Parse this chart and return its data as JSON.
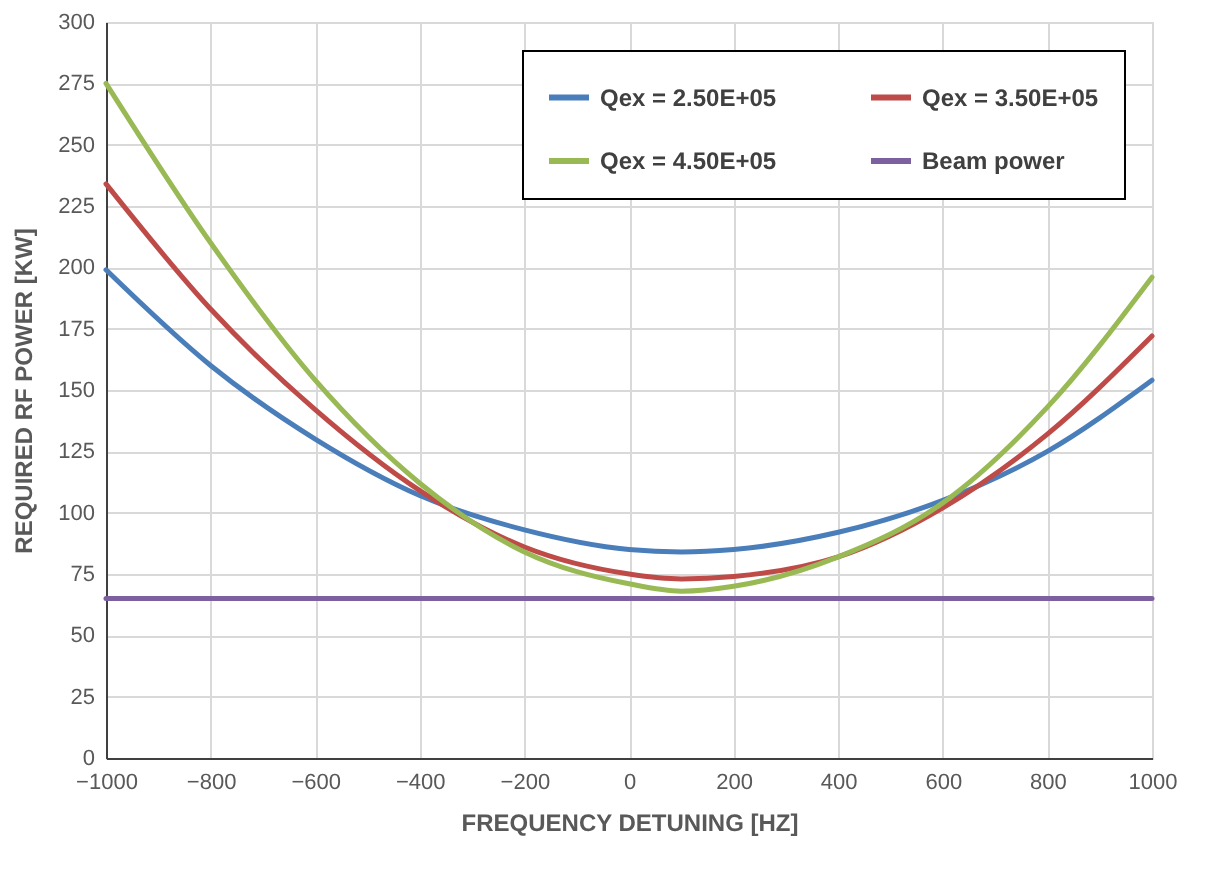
{
  "chart_data": {
    "type": "line",
    "xlabel": "FREQUENCY DETUNING [HZ]",
    "ylabel": "REQUIRED RF POWER [KW]",
    "x": [
      -1000,
      -800,
      -600,
      -400,
      -200,
      0,
      100,
      200,
      400,
      600,
      800,
      1000
    ],
    "series": [
      {
        "name": "Qex = 2.50E+05",
        "color": "#4a7ebb",
        "values": [
          199,
          160,
          130,
          107,
          93,
          85,
          84,
          85,
          92,
          105,
          125,
          154
        ]
      },
      {
        "name": "Qex = 3.50E+05",
        "color": "#be4b48",
        "values": [
          234,
          183,
          142,
          109,
          86,
          75,
          73,
          74,
          82,
          102,
          132,
          172
        ]
      },
      {
        "name": "Qex = 4.50E+05",
        "color": "#98b954",
        "values": [
          275,
          210,
          154,
          112,
          84,
          71,
          68,
          70,
          82,
          104,
          143,
          196
        ]
      },
      {
        "name": "Beam power",
        "color": "#7d60a0",
        "values": [
          65,
          65,
          65,
          65,
          65,
          65,
          65,
          65,
          65,
          65,
          65,
          65
        ]
      }
    ],
    "xlim": [
      -1000,
      1000
    ],
    "xticks": [
      -1000,
      -800,
      -600,
      -400,
      -200,
      0,
      200,
      400,
      600,
      800,
      1000
    ],
    "ylim": [
      0,
      300
    ],
    "yticks": [
      0,
      25,
      50,
      75,
      100,
      125,
      150,
      175,
      200,
      225,
      250,
      275,
      300
    ],
    "grid": true,
    "legend": "top right",
    "marker": "none",
    "line_style": "solid"
  }
}
